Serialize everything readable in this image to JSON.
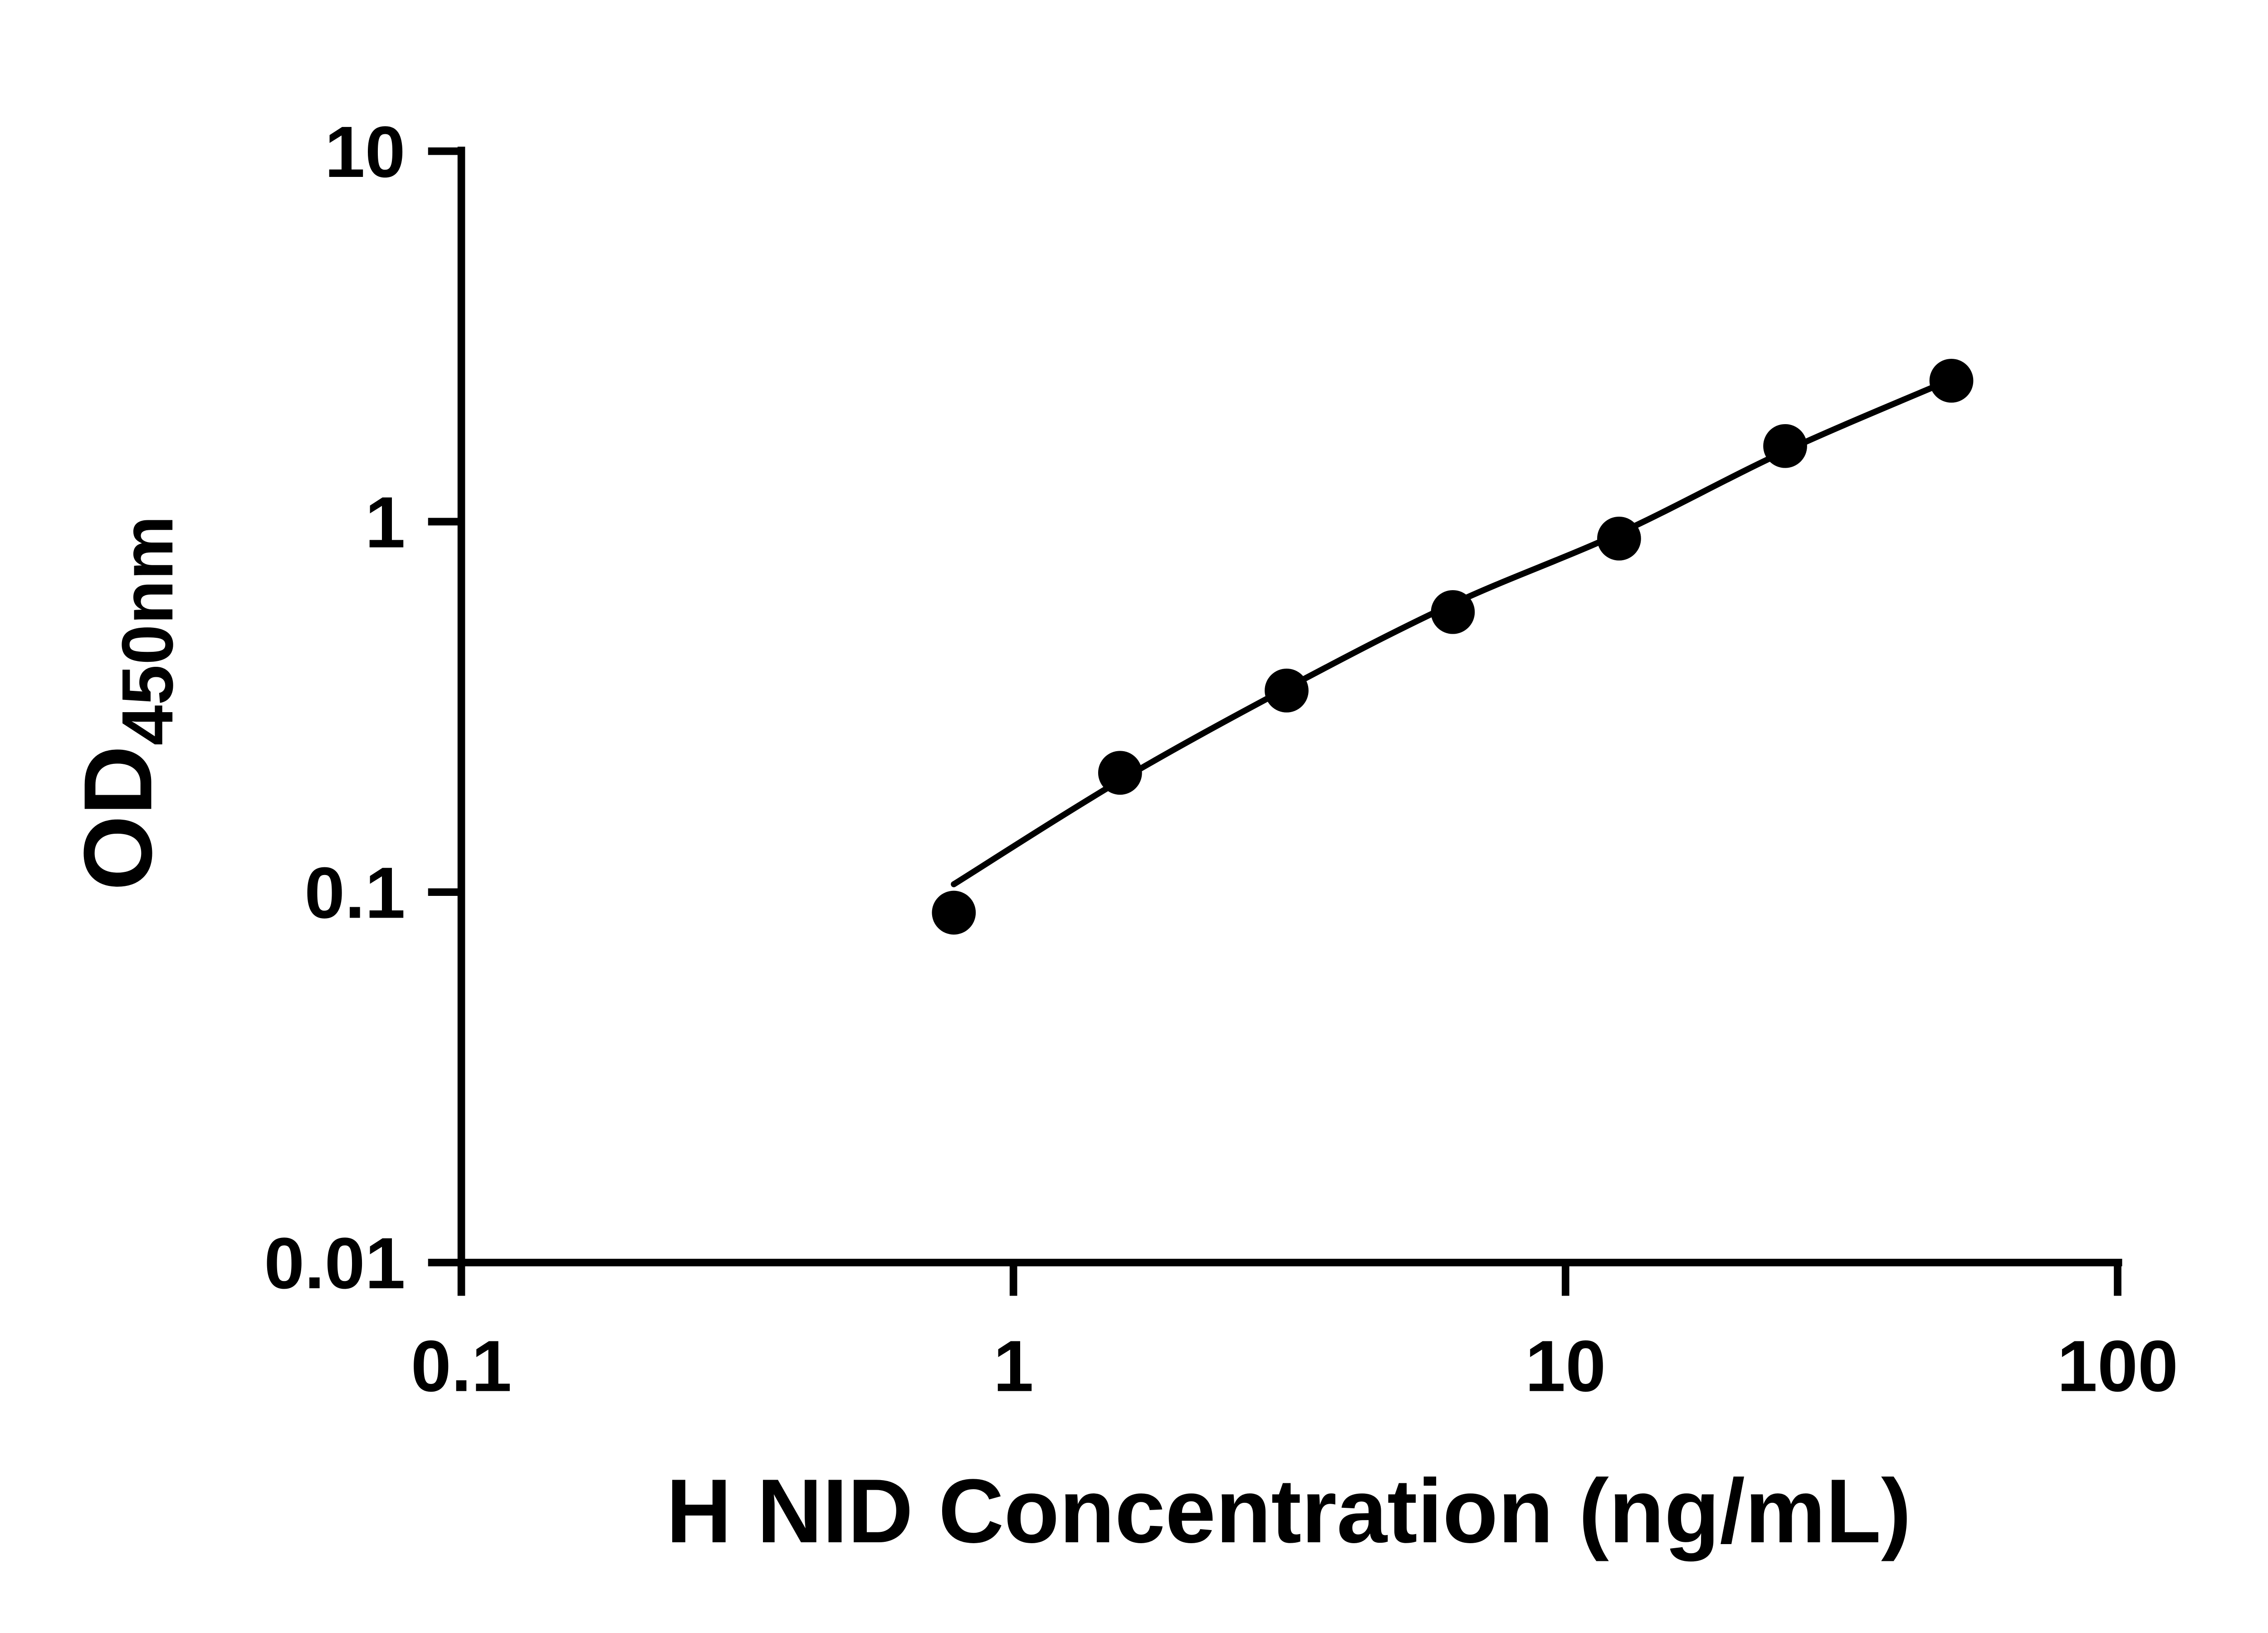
{
  "page": {
    "background": "#ffffff"
  },
  "chart_data": {
    "type": "scatter",
    "title": "",
    "xlabel": "H NID Concentration (ng/mL)",
    "ylabel_main": "OD",
    "ylabel_sub": "450nm",
    "x_scale": "log10",
    "y_scale": "log10",
    "xlim": [
      0.1,
      100
    ],
    "ylim": [
      0.01,
      10
    ],
    "x_ticks": [
      0.1,
      1,
      10,
      100
    ],
    "x_tick_labels": [
      "0.1",
      "1",
      "10",
      "100"
    ],
    "y_ticks": [
      10,
      1,
      0.1,
      0.01
    ],
    "y_tick_labels": [
      "10",
      "1",
      "0.1",
      "0.01"
    ],
    "grid": false,
    "legend": "none",
    "axis_color": "#000000",
    "series": [
      {
        "name": "standard-curve-points",
        "marker": "circle",
        "marker_color": "#000000",
        "x": [
          0.78,
          1.56,
          3.125,
          6.25,
          12.5,
          25,
          50
        ],
        "y": [
          0.088,
          0.21,
          0.35,
          0.57,
          0.9,
          1.6,
          2.4
        ]
      }
    ],
    "fit_line": {
      "color": "#000000",
      "x": [
        0.78,
        1.56,
        3.125,
        6.25,
        12.5,
        25,
        50
      ],
      "y": [
        0.105,
        0.2,
        0.355,
        0.6,
        0.93,
        1.55,
        2.42
      ]
    }
  }
}
